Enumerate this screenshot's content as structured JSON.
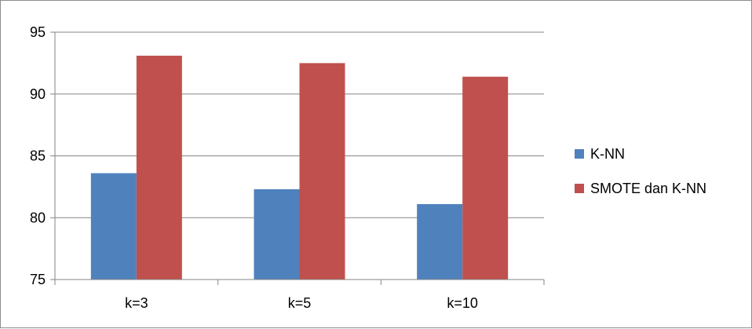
{
  "chart_data": {
    "type": "bar",
    "title": "",
    "xlabel": "",
    "ylabel": "",
    "categories": [
      "k=3",
      "k=5",
      "k=10"
    ],
    "ylim": [
      75,
      95
    ],
    "yticks": [
      75,
      80,
      85,
      90,
      95
    ],
    "grid": true,
    "legend_position": "right",
    "series": [
      {
        "name": "K-NN",
        "color": "#4f81bd",
        "values": [
          83.6,
          82.3,
          81.1
        ]
      },
      {
        "name": "SMOTE dan K-NN",
        "color": "#c0504d",
        "values": [
          93.1,
          92.5,
          91.4
        ]
      }
    ]
  }
}
